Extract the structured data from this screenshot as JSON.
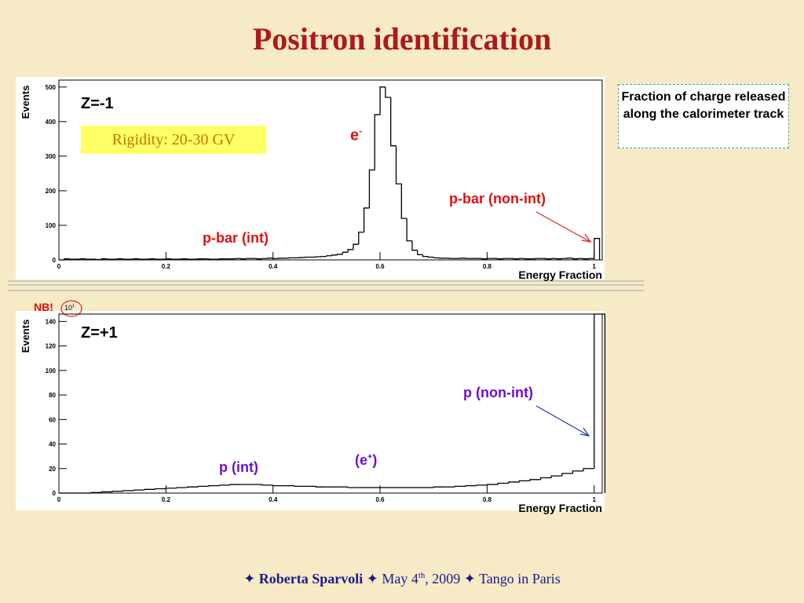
{
  "slide": {
    "title": "Positron identification",
    "note": "Fraction of charge released along the calorimeter track",
    "footer": {
      "separator": "✦",
      "author": "Roberta Sparvoli",
      "date_day": "May 4",
      "date_suffix": "th",
      "date_year": ", 2009",
      "event": "Tango in Paris"
    }
  },
  "chart_data": [
    {
      "type": "histogram",
      "ylabel": "Events",
      "xlabel": "Energy Fraction",
      "panel_label": "Z=-1",
      "rigidity": "Rigidity: 20-30 GV",
      "electron_label": {
        "base": "e",
        "sup": "-"
      },
      "noninteracting_label": "p-bar (non-int)",
      "interacting_label": "p-bar (int)",
      "color": "#000000",
      "bins": [
        0,
        0.01,
        0.02,
        0.03,
        0.04,
        0.05,
        0.06,
        0.07,
        0.08,
        0.09,
        0.1,
        0.11,
        0.12,
        0.13,
        0.14,
        0.15,
        0.16,
        0.17,
        0.18,
        0.19,
        0.2,
        0.21,
        0.22,
        0.23,
        0.24,
        0.25,
        0.26,
        0.27,
        0.28,
        0.29,
        0.3,
        0.31,
        0.32,
        0.33,
        0.34,
        0.35,
        0.36,
        0.37,
        0.38,
        0.39,
        0.4,
        0.41,
        0.42,
        0.43,
        0.44,
        0.45,
        0.46,
        0.47,
        0.48,
        0.49,
        0.5,
        0.51,
        0.52,
        0.53,
        0.54,
        0.55,
        0.56,
        0.57,
        0.58,
        0.59,
        0.6,
        0.61,
        0.62,
        0.63,
        0.64,
        0.65,
        0.66,
        0.67,
        0.68,
        0.69,
        0.7,
        0.71,
        0.72,
        0.73,
        0.74,
        0.75,
        0.76,
        0.77,
        0.78,
        0.79,
        0.8,
        0.81,
        0.82,
        0.83,
        0.84,
        0.85,
        0.86,
        0.87,
        0.88,
        0.89,
        0.9,
        0.91,
        0.92,
        0.93,
        0.94,
        0.95,
        0.96,
        0.97,
        0.98,
        0.99,
        1,
        1.01
      ],
      "values": [
        0,
        3,
        2,
        2,
        3,
        2,
        2,
        1,
        3,
        2,
        2,
        3,
        2,
        2,
        3,
        2,
        2,
        3,
        2,
        2,
        3,
        2,
        2,
        3,
        2,
        2,
        3,
        3,
        2,
        2,
        3,
        3,
        3,
        4,
        3,
        4,
        4,
        3,
        4,
        5,
        4,
        5,
        5,
        6,
        6,
        7,
        8,
        8,
        9,
        10,
        12,
        14,
        16,
        22,
        30,
        45,
        80,
        150,
        260,
        420,
        500,
        470,
        330,
        220,
        120,
        55,
        28,
        15,
        10,
        8,
        6,
        5,
        5,
        4,
        4,
        5,
        4,
        4,
        4,
        3,
        4,
        4,
        3,
        4,
        4,
        3,
        4,
        3,
        3,
        4,
        4,
        3,
        4,
        3,
        4,
        5,
        3,
        4,
        3,
        4,
        62
      ],
      "xlim": [
        0,
        1.015
      ],
      "xticks": [
        0,
        0.2,
        0.4,
        0.6,
        0.8,
        1
      ],
      "ylim": [
        0,
        520
      ],
      "yticks": [
        0,
        100,
        200,
        300,
        400,
        500
      ]
    },
    {
      "type": "histogram",
      "ylabel": "Events",
      "xlabel": "Energy Fraction",
      "panel_label": "Z=+1",
      "warning": "NB!",
      "scale_label": {
        "base": "10",
        "sup": "1"
      },
      "positron_label": {
        "open": "(e",
        "sup": "+",
        "close": ")"
      },
      "noninteracting_label": "p (non-int)",
      "interacting_label": "p (int)",
      "color": "#000000",
      "bins": [
        0,
        0.02,
        0.04,
        0.06,
        0.08,
        0.1,
        0.12,
        0.14,
        0.16,
        0.18,
        0.2,
        0.22,
        0.24,
        0.26,
        0.28,
        0.3,
        0.32,
        0.34,
        0.36,
        0.38,
        0.4,
        0.42,
        0.44,
        0.46,
        0.48,
        0.5,
        0.52,
        0.54,
        0.56,
        0.58,
        0.6,
        0.62,
        0.64,
        0.66,
        0.68,
        0.7,
        0.72,
        0.74,
        0.76,
        0.78,
        0.8,
        0.82,
        0.84,
        0.86,
        0.88,
        0.9,
        0.92,
        0.94,
        0.96,
        0.98,
        1,
        1.02
      ],
      "values": [
        0,
        0,
        0,
        0.5,
        1,
        1.5,
        2,
        2.5,
        3,
        3.5,
        4,
        4.5,
        5,
        5.5,
        6,
        6.5,
        7,
        7,
        7,
        6.5,
        6,
        6,
        5.5,
        5.5,
        5,
        5,
        5,
        4.5,
        4.5,
        4.5,
        4.5,
        4.5,
        4.5,
        4.5,
        4.5,
        5,
        5,
        5.5,
        6,
        6.5,
        7,
        8,
        9,
        10,
        11,
        12.5,
        14,
        16,
        18,
        20,
        146
      ],
      "xlim": [
        0,
        1.015
      ],
      "xticks": [
        0,
        0.2,
        0.4,
        0.6,
        0.8,
        1
      ],
      "ylim": [
        0,
        146
      ],
      "yticks": [
        0,
        20,
        40,
        60,
        80,
        100,
        120,
        140
      ]
    }
  ]
}
